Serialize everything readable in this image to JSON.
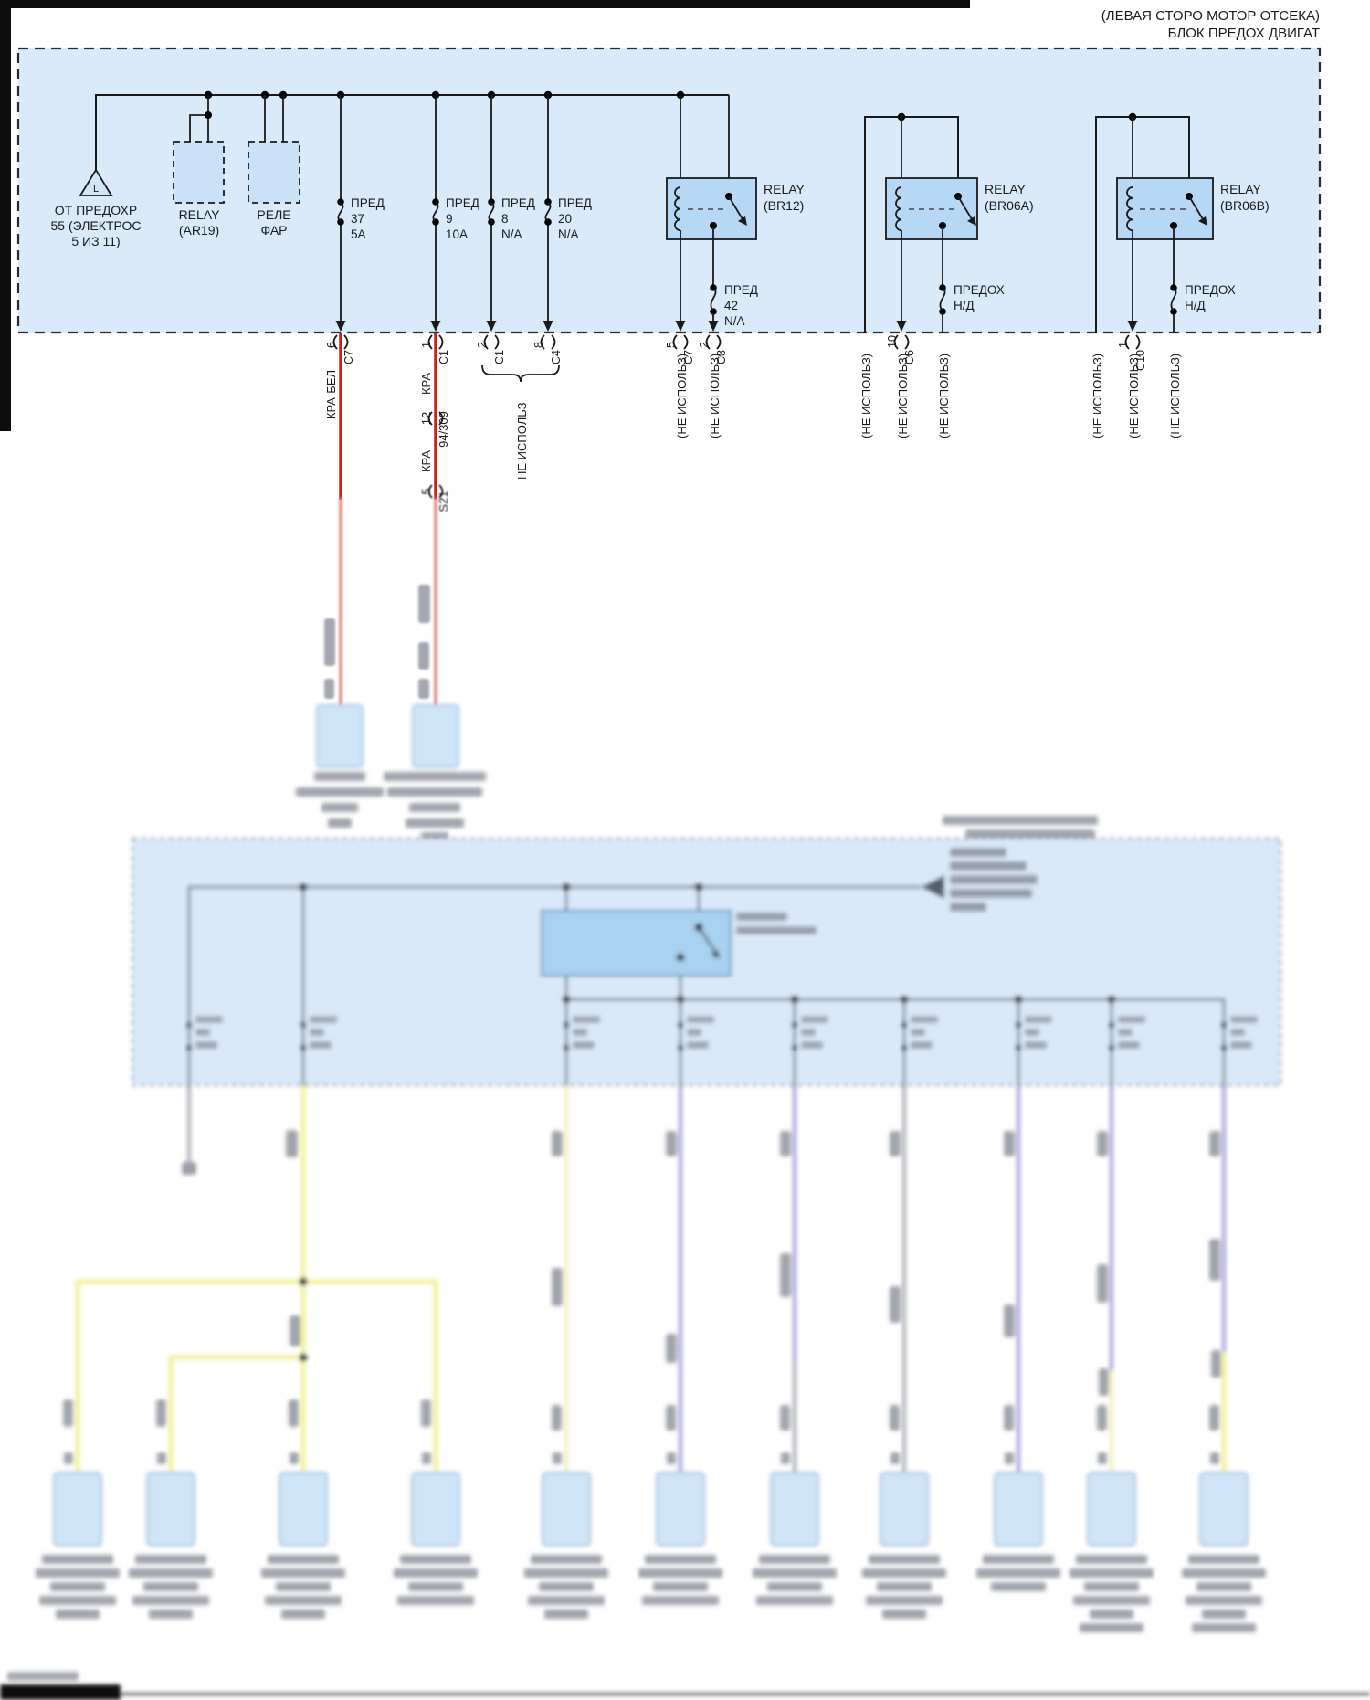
{
  "header": {
    "line1": "(ЛЕВАЯ СТОРО МОТОР ОТСЕКА)",
    "line2": "БЛОК ПРЕДОХ ДВИГАТ"
  },
  "source": {
    "symbol": "L",
    "l1": "ОТ ПРЕДОХР",
    "l2": "55 (ЭЛЕКТРОС",
    "l3": "5 ИЗ 11)"
  },
  "dashed_components": {
    "ar19": {
      "l1": "RELAY",
      "l2": "(AR19)"
    },
    "far": {
      "l1": "РЕЛЕ",
      "l2": "ФАР"
    }
  },
  "fuses": [
    {
      "name": "ПРЕД",
      "num": "37",
      "rating": "5А",
      "pin": "6",
      "conn": "C7",
      "wire": "КРА-БЕЛ"
    },
    {
      "name": "ПРЕД",
      "num": "9",
      "rating": "10А",
      "pin": "1",
      "conn": "C1",
      "wire": "КРА"
    },
    {
      "name": "ПРЕД",
      "num": "8",
      "rating": "N/A",
      "pin": "2",
      "conn": "C1"
    },
    {
      "name": "ПРЕД",
      "num": "20",
      "rating": "N/A",
      "pin": "8",
      "conn": "C4"
    }
  ],
  "relays": {
    "br12": {
      "l1": "RELAY",
      "l2": "(BR12)",
      "fuse1": "ПРЕД",
      "fuse2": "42",
      "fuse3": "N/A",
      "coil_pin": "5",
      "coil_conn": "C7",
      "out_pin": "2",
      "out_conn": "C8"
    },
    "br06a": {
      "l1": "RELAY",
      "l2": "(BR06A)",
      "fuse1": "ПРЕДОХ",
      "fuse2": "Н/Д",
      "coil_pin": "10",
      "coil_conn": "C6"
    },
    "br06b": {
      "l1": "RELAY",
      "l2": "(BR06B)",
      "fuse1": "ПРЕДОХ",
      "fuse2": "Н/Д",
      "coil_pin": "1",
      "coil_conn": "C10"
    }
  },
  "labels": {
    "not_used": "(НЕ ИСПОЛЬЗ)",
    "not_used_brace": "НЕ ИСПОЛЬЗ",
    "wire_kra_bel": "КРА-БЕЛ",
    "wire_kra": "КРА",
    "splice1_pin": "12",
    "splice1_name": "94/309",
    "splice2_pin": "5",
    "splice2_name": "S21"
  },
  "colors": {
    "panel_fill": "#d9eafb",
    "relay_fill": "#b7d8f5",
    "component_fill": "#c9e2f8",
    "blur_box_fill": "#d9e9fa",
    "blur_component_fill": "#cfe5f8",
    "blur_component_stroke": "#a3bed8",
    "inner_box_fill": "#a9d2f0",
    "inner_box_stroke": "#5c87ad",
    "wire_red": "#c9201a",
    "wire_red_blur": "#e2998f",
    "wire_yellow": "#f1ee8d",
    "wire_cream": "#f0eebb",
    "wire_purple": "#a79fdd",
    "wire_gray": "#9fa3ab",
    "smudge": "#818692",
    "dark_dot": "#3a3f46",
    "line": "#1a1a1a"
  },
  "lower": {
    "upper_components": 2,
    "pin_columns": 9,
    "bottom_components": 11,
    "bottom_label_rows": [
      5,
      5,
      5,
      4,
      5,
      4,
      4,
      5,
      3,
      6,
      6
    ]
  }
}
